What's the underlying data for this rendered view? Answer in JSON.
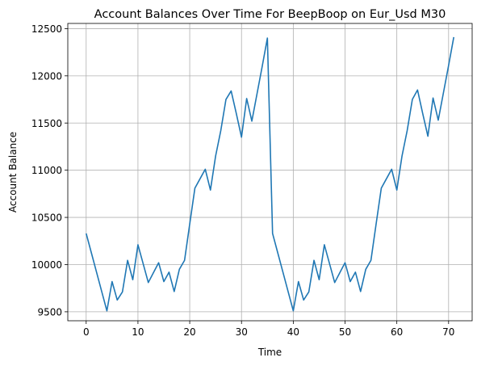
{
  "chart_data": {
    "type": "line",
    "title": "Account Balances Over Time For BeepBoop on Eur_Usd M30",
    "xlabel": "Time",
    "ylabel": "Account Balance",
    "xlim": [
      -3.55,
      74.55
    ],
    "ylim": [
      9405,
      12555
    ],
    "xticks": [
      0,
      10,
      20,
      30,
      40,
      50,
      60,
      70
    ],
    "yticks": [
      9500,
      10000,
      10500,
      11000,
      11500,
      12000,
      12500
    ],
    "grid": true,
    "color": "#1f77b4",
    "series": [
      {
        "x": [
          0,
          1,
          2,
          3,
          4,
          5,
          6,
          7,
          8,
          9,
          10,
          11,
          12,
          13,
          14,
          15,
          16,
          17,
          18,
          19,
          20,
          21,
          22,
          23,
          24,
          25,
          26,
          27,
          28,
          29,
          30,
          31,
          32,
          33,
          34,
          35,
          36,
          37,
          38,
          39,
          40,
          41,
          42,
          43,
          44,
          45,
          46,
          47,
          48,
          49,
          50,
          51,
          52,
          53,
          54,
          55,
          56,
          57,
          58,
          59,
          60,
          61,
          62,
          63,
          64,
          65,
          66,
          67,
          68,
          69,
          70,
          71
        ],
        "values": [
          10330,
          10125,
          9920,
          9715,
          9510,
          9820,
          9625,
          9710,
          10045,
          9840,
          10210,
          10010,
          9810,
          9915,
          10020,
          9820,
          9920,
          9715,
          9950,
          10045,
          10430,
          10810,
          10910,
          11010,
          10790,
          11150,
          11420,
          11750,
          11840,
          11600,
          11350,
          11760,
          11520,
          11810,
          12100,
          12400,
          10330,
          10125,
          9920,
          9715,
          9510,
          9820,
          9625,
          9710,
          10045,
          9840,
          10210,
          10010,
          9810,
          9915,
          10020,
          9820,
          9920,
          9715,
          9950,
          10045,
          10430,
          10810,
          10910,
          11010,
          10790,
          11150,
          11420,
          11750,
          11850,
          11600,
          11360,
          11765,
          11530,
          11820,
          12110,
          12410
        ]
      }
    ]
  }
}
